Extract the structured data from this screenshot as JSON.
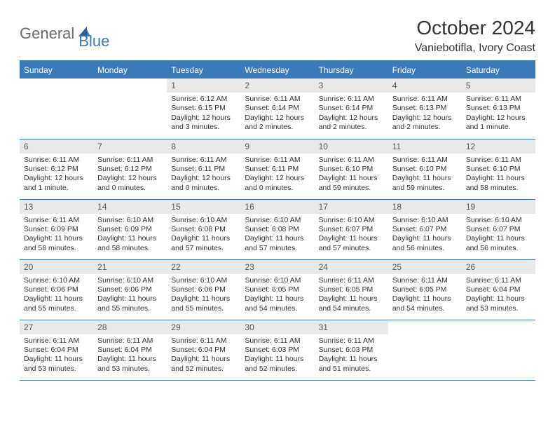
{
  "logo": {
    "text1": "General",
    "text2": "Blue"
  },
  "header": {
    "title": "October 2024",
    "location": "Vaniebotifla, Ivory Coast"
  },
  "colors": {
    "brand_blue": "#3a7ab8",
    "header_row_bg": "#3a7ab8",
    "daynum_bg": "#e9e9e9",
    "text_gray": "#6b6b6b",
    "body_text": "#323232"
  },
  "weekdays": [
    "Sunday",
    "Monday",
    "Tuesday",
    "Wednesday",
    "Thursday",
    "Friday",
    "Saturday"
  ],
  "cells": [
    {
      "day": "",
      "sunrise": "",
      "sunset": "",
      "daylight": ""
    },
    {
      "day": "",
      "sunrise": "",
      "sunset": "",
      "daylight": ""
    },
    {
      "day": "1",
      "sunrise": "Sunrise: 6:12 AM",
      "sunset": "Sunset: 6:15 PM",
      "daylight": "Daylight: 12 hours and 3 minutes."
    },
    {
      "day": "2",
      "sunrise": "Sunrise: 6:11 AM",
      "sunset": "Sunset: 6:14 PM",
      "daylight": "Daylight: 12 hours and 2 minutes."
    },
    {
      "day": "3",
      "sunrise": "Sunrise: 6:11 AM",
      "sunset": "Sunset: 6:14 PM",
      "daylight": "Daylight: 12 hours and 2 minutes."
    },
    {
      "day": "4",
      "sunrise": "Sunrise: 6:11 AM",
      "sunset": "Sunset: 6:13 PM",
      "daylight": "Daylight: 12 hours and 2 minutes."
    },
    {
      "day": "5",
      "sunrise": "Sunrise: 6:11 AM",
      "sunset": "Sunset: 6:13 PM",
      "daylight": "Daylight: 12 hours and 1 minute."
    },
    {
      "day": "6",
      "sunrise": "Sunrise: 6:11 AM",
      "sunset": "Sunset: 6:12 PM",
      "daylight": "Daylight: 12 hours and 1 minute."
    },
    {
      "day": "7",
      "sunrise": "Sunrise: 6:11 AM",
      "sunset": "Sunset: 6:12 PM",
      "daylight": "Daylight: 12 hours and 0 minutes."
    },
    {
      "day": "8",
      "sunrise": "Sunrise: 6:11 AM",
      "sunset": "Sunset: 6:11 PM",
      "daylight": "Daylight: 12 hours and 0 minutes."
    },
    {
      "day": "9",
      "sunrise": "Sunrise: 6:11 AM",
      "sunset": "Sunset: 6:11 PM",
      "daylight": "Daylight: 12 hours and 0 minutes."
    },
    {
      "day": "10",
      "sunrise": "Sunrise: 6:11 AM",
      "sunset": "Sunset: 6:10 PM",
      "daylight": "Daylight: 11 hours and 59 minutes."
    },
    {
      "day": "11",
      "sunrise": "Sunrise: 6:11 AM",
      "sunset": "Sunset: 6:10 PM",
      "daylight": "Daylight: 11 hours and 59 minutes."
    },
    {
      "day": "12",
      "sunrise": "Sunrise: 6:11 AM",
      "sunset": "Sunset: 6:10 PM",
      "daylight": "Daylight: 11 hours and 58 minutes."
    },
    {
      "day": "13",
      "sunrise": "Sunrise: 6:11 AM",
      "sunset": "Sunset: 6:09 PM",
      "daylight": "Daylight: 11 hours and 58 minutes."
    },
    {
      "day": "14",
      "sunrise": "Sunrise: 6:10 AM",
      "sunset": "Sunset: 6:09 PM",
      "daylight": "Daylight: 11 hours and 58 minutes."
    },
    {
      "day": "15",
      "sunrise": "Sunrise: 6:10 AM",
      "sunset": "Sunset: 6:08 PM",
      "daylight": "Daylight: 11 hours and 57 minutes."
    },
    {
      "day": "16",
      "sunrise": "Sunrise: 6:10 AM",
      "sunset": "Sunset: 6:08 PM",
      "daylight": "Daylight: 11 hours and 57 minutes."
    },
    {
      "day": "17",
      "sunrise": "Sunrise: 6:10 AM",
      "sunset": "Sunset: 6:07 PM",
      "daylight": "Daylight: 11 hours and 57 minutes."
    },
    {
      "day": "18",
      "sunrise": "Sunrise: 6:10 AM",
      "sunset": "Sunset: 6:07 PM",
      "daylight": "Daylight: 11 hours and 56 minutes."
    },
    {
      "day": "19",
      "sunrise": "Sunrise: 6:10 AM",
      "sunset": "Sunset: 6:07 PM",
      "daylight": "Daylight: 11 hours and 56 minutes."
    },
    {
      "day": "20",
      "sunrise": "Sunrise: 6:10 AM",
      "sunset": "Sunset: 6:06 PM",
      "daylight": "Daylight: 11 hours and 55 minutes."
    },
    {
      "day": "21",
      "sunrise": "Sunrise: 6:10 AM",
      "sunset": "Sunset: 6:06 PM",
      "daylight": "Daylight: 11 hours and 55 minutes."
    },
    {
      "day": "22",
      "sunrise": "Sunrise: 6:10 AM",
      "sunset": "Sunset: 6:06 PM",
      "daylight": "Daylight: 11 hours and 55 minutes."
    },
    {
      "day": "23",
      "sunrise": "Sunrise: 6:10 AM",
      "sunset": "Sunset: 6:05 PM",
      "daylight": "Daylight: 11 hours and 54 minutes."
    },
    {
      "day": "24",
      "sunrise": "Sunrise: 6:11 AM",
      "sunset": "Sunset: 6:05 PM",
      "daylight": "Daylight: 11 hours and 54 minutes."
    },
    {
      "day": "25",
      "sunrise": "Sunrise: 6:11 AM",
      "sunset": "Sunset: 6:05 PM",
      "daylight": "Daylight: 11 hours and 54 minutes."
    },
    {
      "day": "26",
      "sunrise": "Sunrise: 6:11 AM",
      "sunset": "Sunset: 6:04 PM",
      "daylight": "Daylight: 11 hours and 53 minutes."
    },
    {
      "day": "27",
      "sunrise": "Sunrise: 6:11 AM",
      "sunset": "Sunset: 6:04 PM",
      "daylight": "Daylight: 11 hours and 53 minutes."
    },
    {
      "day": "28",
      "sunrise": "Sunrise: 6:11 AM",
      "sunset": "Sunset: 6:04 PM",
      "daylight": "Daylight: 11 hours and 53 minutes."
    },
    {
      "day": "29",
      "sunrise": "Sunrise: 6:11 AM",
      "sunset": "Sunset: 6:04 PM",
      "daylight": "Daylight: 11 hours and 52 minutes."
    },
    {
      "day": "30",
      "sunrise": "Sunrise: 6:11 AM",
      "sunset": "Sunset: 6:03 PM",
      "daylight": "Daylight: 11 hours and 52 minutes."
    },
    {
      "day": "31",
      "sunrise": "Sunrise: 6:11 AM",
      "sunset": "Sunset: 6:03 PM",
      "daylight": "Daylight: 11 hours and 51 minutes."
    },
    {
      "day": "",
      "sunrise": "",
      "sunset": "",
      "daylight": ""
    },
    {
      "day": "",
      "sunrise": "",
      "sunset": "",
      "daylight": ""
    }
  ]
}
